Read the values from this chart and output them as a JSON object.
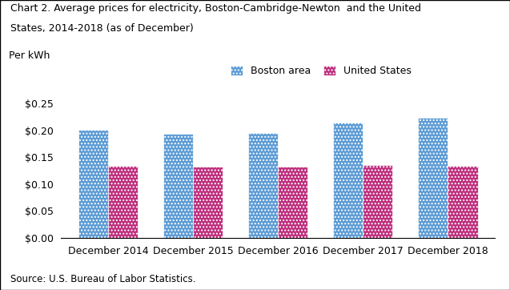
{
  "title_line1": "Chart 2. Average prices for electricity, Boston-Cambridge-Newton  and the United",
  "title_line2": "States, 2014-2018 (as of December)",
  "ylabel": "Per kWh",
  "source": "Source: U.S. Bureau of Labor Statistics.",
  "categories": [
    "December 2014",
    "December 2015",
    "December 2016",
    "December 2017",
    "December 2018"
  ],
  "boston_values": [
    0.201,
    0.194,
    0.195,
    0.214,
    0.224
  ],
  "us_values": [
    0.134,
    0.133,
    0.133,
    0.136,
    0.134
  ],
  "boston_color": "#5B9BD5",
  "us_color": "#BE2D7C",
  "boston_label": "Boston area",
  "us_label": "United States",
  "ylim": [
    0,
    0.27
  ],
  "yticks": [
    0.0,
    0.05,
    0.1,
    0.15,
    0.2,
    0.25
  ],
  "bar_width": 0.35,
  "background_color": "#ffffff",
  "title_fontsize": 9,
  "label_fontsize": 9,
  "tick_fontsize": 9
}
